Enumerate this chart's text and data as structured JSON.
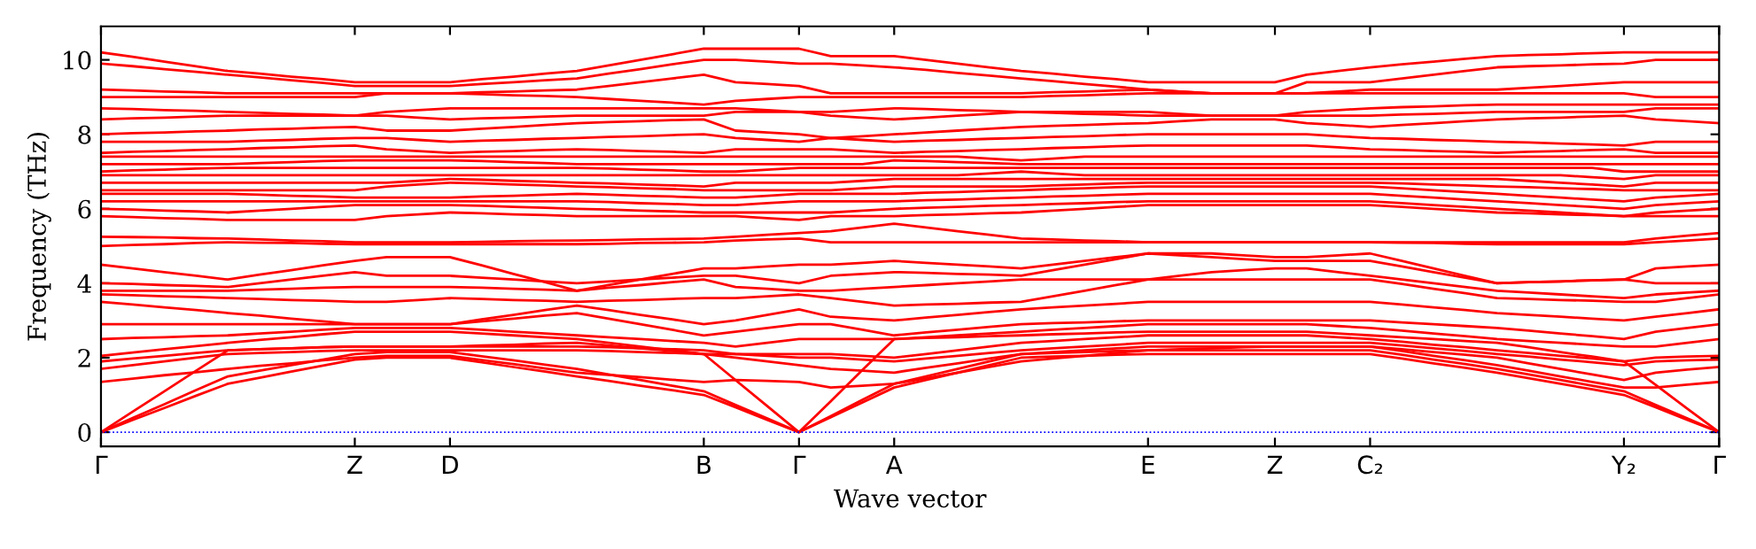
{
  "chart_data": {
    "type": "line",
    "xlabel": "Wave vector",
    "ylabel": "Frequency (THz)",
    "categories": [
      "Γ",
      null,
      null,
      null,
      null,
      null,
      null,
      null,
      "Z",
      null,
      null,
      "D",
      null,
      null,
      null,
      null,
      null,
      null,
      null,
      "B",
      null,
      null,
      "Γ",
      null,
      null,
      "A",
      null,
      null,
      null,
      null,
      null,
      null,
      null,
      "E",
      null,
      null,
      null,
      "Z",
      null,
      null,
      "C₂",
      null,
      null,
      null,
      null,
      null,
      null,
      null,
      "Y₂",
      null,
      null,
      "Γ"
    ],
    "ylim": [
      -0.38,
      10.9
    ],
    "yticks": [
      0,
      2,
      4,
      6,
      8,
      10
    ],
    "grid": false,
    "line_style": "solid",
    "marker": "none",
    "ref_lines": [
      {
        "axis": "y",
        "value": 0,
        "color": "#0000ff",
        "line_style": "dotted"
      }
    ],
    "series": [
      {
        "color": "#ff0000",
        "values": [
          0,
          0.33,
          0.65,
          0.98,
          1.3,
          1.46,
          1.63,
          1.79,
          1.95,
          2.0,
          2.0,
          2.0,
          1.88,
          1.75,
          1.63,
          1.5,
          1.38,
          1.25,
          1.13,
          1.0,
          0.67,
          0.33,
          0,
          0.4,
          0.8,
          1.2,
          1.4,
          1.6,
          1.8,
          2.0,
          2.03,
          2.05,
          2.08,
          2.1,
          2.1,
          2.1,
          2.1,
          2.1,
          2.1,
          2.1,
          2.1,
          1.98,
          1.85,
          1.73,
          1.6,
          1.45,
          1.3,
          1.15,
          1.0,
          0.67,
          0.33,
          0
        ]
      },
      {
        "color": "#ff0000",
        "values": [
          0,
          0.38,
          0.75,
          1.13,
          1.5,
          1.65,
          1.8,
          1.95,
          2.1,
          2.15,
          2.15,
          2.15,
          2.04,
          1.93,
          1.81,
          1.7,
          1.55,
          1.4,
          1.25,
          1.1,
          0.73,
          0.37,
          0,
          0.43,
          0.87,
          1.3,
          1.5,
          1.7,
          1.9,
          2.1,
          2.13,
          2.15,
          2.18,
          2.2,
          2.2,
          2.2,
          2.2,
          2.2,
          2.2,
          2.2,
          2.2,
          2.08,
          1.95,
          1.83,
          1.7,
          1.55,
          1.4,
          1.25,
          1.1,
          0.73,
          0.37,
          0
        ]
      },
      {
        "color": "#ff0000",
        "values": [
          0,
          0.55,
          1.1,
          1.65,
          2.2,
          2.23,
          2.25,
          2.28,
          2.3,
          2.3,
          2.3,
          2.3,
          2.33,
          2.35,
          2.38,
          2.4,
          2.33,
          2.25,
          2.18,
          2.1,
          1.4,
          0.7,
          0,
          0.83,
          1.67,
          2.5,
          2.53,
          2.55,
          2.58,
          2.6,
          2.63,
          2.65,
          2.68,
          2.7,
          2.7,
          2.7,
          2.7,
          2.7,
          2.7,
          2.65,
          2.6,
          2.55,
          2.5,
          2.45,
          2.4,
          2.28,
          2.15,
          2.03,
          1.9,
          1.27,
          0.63,
          0
        ]
      },
      {
        "color": "#ff0000",
        "values": [
          1.35,
          1.44,
          1.53,
          1.61,
          1.7,
          1.78,
          1.85,
          1.93,
          2.0,
          2.05,
          2.05,
          2.05,
          1.94,
          1.83,
          1.71,
          1.6,
          1.54,
          1.48,
          1.41,
          1.35,
          1.4,
          1.38,
          1.35,
          1.2,
          1.25,
          1.3,
          1.45,
          1.6,
          1.75,
          1.9,
          1.98,
          2.05,
          2.13,
          2.2,
          2.23,
          2.25,
          2.28,
          2.3,
          2.3,
          2.3,
          2.3,
          2.18,
          2.05,
          1.93,
          1.8,
          1.65,
          1.5,
          1.35,
          1.2,
          1.2,
          1.28,
          1.35
        ]
      },
      {
        "color": "#ff0000",
        "values": [
          1.7,
          1.8,
          1.9,
          2.0,
          2.1,
          2.13,
          2.15,
          2.18,
          2.2,
          2.2,
          2.2,
          2.2,
          2.2,
          2.2,
          2.2,
          2.2,
          2.18,
          2.15,
          2.13,
          2.1,
          2.0,
          1.9,
          1.8,
          1.7,
          1.65,
          1.6,
          1.73,
          1.85,
          1.98,
          2.1,
          2.15,
          2.2,
          2.25,
          2.3,
          2.3,
          2.3,
          2.3,
          2.3,
          2.3,
          2.3,
          2.3,
          2.23,
          2.15,
          2.08,
          2.0,
          1.85,
          1.7,
          1.55,
          1.4,
          1.6,
          1.68,
          1.75
        ]
      },
      {
        "color": "#ff0000",
        "values": [
          1.9,
          1.98,
          2.05,
          2.13,
          2.2,
          2.23,
          2.25,
          2.28,
          2.3,
          2.3,
          2.3,
          2.3,
          2.3,
          2.3,
          2.3,
          2.3,
          2.28,
          2.25,
          2.23,
          2.2,
          2.1,
          2.05,
          2.0,
          2.0,
          1.95,
          1.9,
          1.98,
          2.05,
          2.13,
          2.2,
          2.25,
          2.3,
          2.35,
          2.4,
          2.4,
          2.4,
          2.4,
          2.4,
          2.4,
          2.4,
          2.4,
          2.33,
          2.25,
          2.18,
          2.1,
          2.03,
          1.95,
          1.88,
          1.8,
          1.9,
          1.93,
          1.95
        ]
      },
      {
        "color": "#ff0000",
        "values": [
          2.05,
          2.14,
          2.23,
          2.31,
          2.4,
          2.48,
          2.55,
          2.63,
          2.7,
          2.7,
          2.7,
          2.7,
          2.65,
          2.6,
          2.55,
          2.5,
          2.4,
          2.3,
          2.2,
          2.1,
          2.1,
          2.1,
          2.1,
          2.1,
          2.05,
          2.0,
          2.1,
          2.2,
          2.3,
          2.4,
          2.45,
          2.5,
          2.55,
          2.6,
          2.6,
          2.6,
          2.6,
          2.6,
          2.6,
          2.55,
          2.5,
          2.43,
          2.35,
          2.28,
          2.2,
          2.13,
          2.05,
          1.98,
          1.9,
          2.0,
          2.03,
          2.05
        ]
      },
      {
        "color": "#ff0000",
        "values": [
          2.5,
          2.53,
          2.55,
          2.58,
          2.6,
          2.65,
          2.7,
          2.75,
          2.8,
          2.8,
          2.8,
          2.8,
          2.75,
          2.7,
          2.65,
          2.6,
          2.55,
          2.5,
          2.45,
          2.4,
          2.3,
          2.4,
          2.5,
          2.5,
          2.5,
          2.5,
          2.55,
          2.6,
          2.65,
          2.7,
          2.75,
          2.8,
          2.85,
          2.9,
          2.9,
          2.9,
          2.9,
          2.9,
          2.9,
          2.85,
          2.8,
          2.73,
          2.65,
          2.58,
          2.5,
          2.45,
          2.4,
          2.35,
          2.3,
          2.3,
          2.4,
          2.5
        ]
      },
      {
        "color": "#ff0000",
        "values": [
          2.9,
          2.9,
          2.9,
          2.9,
          2.9,
          2.9,
          2.9,
          2.9,
          2.9,
          2.9,
          2.9,
          2.9,
          2.98,
          3.05,
          3.13,
          3.2,
          3.05,
          2.9,
          2.75,
          2.6,
          2.7,
          2.8,
          2.9,
          2.9,
          2.75,
          2.6,
          2.68,
          2.75,
          2.83,
          2.9,
          2.93,
          2.95,
          2.98,
          3.0,
          3.0,
          3.0,
          3.0,
          3.0,
          3.0,
          3.0,
          3.0,
          2.95,
          2.9,
          2.85,
          2.8,
          2.73,
          2.65,
          2.58,
          2.5,
          2.7,
          2.8,
          2.9
        ]
      },
      {
        "color": "#ff0000",
        "values": [
          3.5,
          3.43,
          3.35,
          3.28,
          3.2,
          3.13,
          3.05,
          2.98,
          2.9,
          2.9,
          2.9,
          2.9,
          3.03,
          3.15,
          3.28,
          3.4,
          3.28,
          3.15,
          3.03,
          2.9,
          3.0,
          3.15,
          3.3,
          3.1,
          3.05,
          3.0,
          3.08,
          3.15,
          3.23,
          3.3,
          3.35,
          3.4,
          3.45,
          3.5,
          3.5,
          3.5,
          3.5,
          3.5,
          3.5,
          3.5,
          3.5,
          3.43,
          3.35,
          3.28,
          3.2,
          3.15,
          3.1,
          3.05,
          3.0,
          3.1,
          3.2,
          3.3
        ]
      },
      {
        "color": "#ff0000",
        "values": [
          3.7,
          3.68,
          3.65,
          3.63,
          3.6,
          3.58,
          3.55,
          3.53,
          3.5,
          3.5,
          3.55,
          3.6,
          3.58,
          3.55,
          3.53,
          3.5,
          3.53,
          3.55,
          3.58,
          3.6,
          3.6,
          3.65,
          3.7,
          3.6,
          3.5,
          3.4,
          3.43,
          3.45,
          3.48,
          3.5,
          3.65,
          3.8,
          3.95,
          4.1,
          4.1,
          4.1,
          4.1,
          4.1,
          4.1,
          4.1,
          4.1,
          3.98,
          3.85,
          3.73,
          3.6,
          3.58,
          3.55,
          3.53,
          3.5,
          3.5,
          3.6,
          3.7
        ]
      },
      {
        "color": "#ff0000",
        "values": [
          3.8,
          3.8,
          3.8,
          3.8,
          3.8,
          3.83,
          3.85,
          3.88,
          3.9,
          3.9,
          3.9,
          3.9,
          3.88,
          3.85,
          3.83,
          3.8,
          3.88,
          3.95,
          4.03,
          4.1,
          3.9,
          3.85,
          3.8,
          3.8,
          3.85,
          3.9,
          3.95,
          4.0,
          4.05,
          4.1,
          4.1,
          4.1,
          4.1,
          4.1,
          4.2,
          4.3,
          4.35,
          4.4,
          4.4,
          4.3,
          4.2,
          4.1,
          4.0,
          3.9,
          3.8,
          3.75,
          3.7,
          3.65,
          3.6,
          3.7,
          3.75,
          3.8
        ]
      },
      {
        "color": "#ff0000",
        "values": [
          4.0,
          3.98,
          3.95,
          3.93,
          3.9,
          4.0,
          4.1,
          4.2,
          4.3,
          4.2,
          4.2,
          4.2,
          4.15,
          4.1,
          4.05,
          4.0,
          4.05,
          4.1,
          4.15,
          4.2,
          4.2,
          4.1,
          4.0,
          4.2,
          4.25,
          4.3,
          4.28,
          4.25,
          4.23,
          4.2,
          4.35,
          4.5,
          4.65,
          4.8,
          4.8,
          4.8,
          4.75,
          4.7,
          4.7,
          4.75,
          4.8,
          4.6,
          4.4,
          4.2,
          4.0,
          4.03,
          4.05,
          4.08,
          4.1,
          4.0,
          4.0,
          4.0
        ]
      },
      {
        "color": "#ff0000",
        "values": [
          4.5,
          4.4,
          4.3,
          4.2,
          4.1,
          4.23,
          4.35,
          4.48,
          4.6,
          4.7,
          4.7,
          4.7,
          4.48,
          4.25,
          4.03,
          3.8,
          3.95,
          4.1,
          4.25,
          4.4,
          4.4,
          4.45,
          4.5,
          4.5,
          4.55,
          4.6,
          4.55,
          4.5,
          4.45,
          4.4,
          4.5,
          4.6,
          4.7,
          4.8,
          4.75,
          4.7,
          4.65,
          4.6,
          4.6,
          4.6,
          4.6,
          4.45,
          4.3,
          4.15,
          4.0,
          4.03,
          4.05,
          4.08,
          4.1,
          4.4,
          4.45,
          4.5
        ]
      },
      {
        "color": "#ff0000",
        "values": [
          5.0,
          5.03,
          5.05,
          5.08,
          5.1,
          5.09,
          5.08,
          5.06,
          5.05,
          5.05,
          5.05,
          5.05,
          5.05,
          5.05,
          5.05,
          5.05,
          5.06,
          5.08,
          5.09,
          5.1,
          5.15,
          5.18,
          5.2,
          5.1,
          5.1,
          5.1,
          5.1,
          5.1,
          5.1,
          5.1,
          5.1,
          5.1,
          5.1,
          5.1,
          5.1,
          5.1,
          5.1,
          5.1,
          5.1,
          5.1,
          5.1,
          5.09,
          5.08,
          5.06,
          5.05,
          5.05,
          5.05,
          5.05,
          5.05,
          5.1,
          5.15,
          5.2
        ]
      },
      {
        "color": "#ff0000",
        "values": [
          5.25,
          5.24,
          5.23,
          5.21,
          5.2,
          5.18,
          5.15,
          5.13,
          5.1,
          5.1,
          5.1,
          5.1,
          5.11,
          5.13,
          5.14,
          5.15,
          5.16,
          5.18,
          5.19,
          5.2,
          5.25,
          5.3,
          5.35,
          5.4,
          5.5,
          5.6,
          5.5,
          5.4,
          5.3,
          5.2,
          5.18,
          5.15,
          5.13,
          5.1,
          5.1,
          5.1,
          5.1,
          5.1,
          5.1,
          5.1,
          5.1,
          5.1,
          5.1,
          5.1,
          5.1,
          5.1,
          5.1,
          5.1,
          5.1,
          5.2,
          5.28,
          5.35
        ]
      },
      {
        "color": "#ff0000",
        "values": [
          5.8,
          5.78,
          5.75,
          5.73,
          5.7,
          5.7,
          5.7,
          5.7,
          5.7,
          5.8,
          5.85,
          5.9,
          5.88,
          5.85,
          5.83,
          5.8,
          5.8,
          5.8,
          5.8,
          5.8,
          5.8,
          5.75,
          5.7,
          5.8,
          5.8,
          5.8,
          5.83,
          5.85,
          5.88,
          5.9,
          5.95,
          6.0,
          6.05,
          6.1,
          6.1,
          6.1,
          6.1,
          6.1,
          6.1,
          6.1,
          6.1,
          6.05,
          6.0,
          5.95,
          5.9,
          5.88,
          5.85,
          5.83,
          5.8,
          5.8,
          5.8,
          5.8
        ]
      },
      {
        "color": "#ff0000",
        "values": [
          6.0,
          5.98,
          5.95,
          5.93,
          5.9,
          5.95,
          6.0,
          6.05,
          6.1,
          6.1,
          6.1,
          6.1,
          6.08,
          6.05,
          6.03,
          6.0,
          5.98,
          5.95,
          5.93,
          5.9,
          5.9,
          5.9,
          5.9,
          5.9,
          5.95,
          6.0,
          6.03,
          6.05,
          6.08,
          6.1,
          6.13,
          6.15,
          6.18,
          6.2,
          6.2,
          6.2,
          6.2,
          6.2,
          6.2,
          6.2,
          6.2,
          6.15,
          6.1,
          6.05,
          6.0,
          5.95,
          5.9,
          5.85,
          5.8,
          5.9,
          5.95,
          6.0
        ]
      },
      {
        "color": "#ff0000",
        "values": [
          6.2,
          6.2,
          6.2,
          6.2,
          6.2,
          6.2,
          6.2,
          6.2,
          6.2,
          6.2,
          6.2,
          6.2,
          6.2,
          6.2,
          6.2,
          6.2,
          6.18,
          6.15,
          6.13,
          6.1,
          6.1,
          6.15,
          6.2,
          6.2,
          6.2,
          6.2,
          6.23,
          6.25,
          6.28,
          6.3,
          6.33,
          6.35,
          6.38,
          6.4,
          6.4,
          6.4,
          6.4,
          6.4,
          6.4,
          6.4,
          6.4,
          6.35,
          6.3,
          6.25,
          6.2,
          6.15,
          6.1,
          6.05,
          6.0,
          6.1,
          6.15,
          6.2
        ]
      },
      {
        "color": "#ff0000",
        "values": [
          6.4,
          6.4,
          6.4,
          6.4,
          6.4,
          6.38,
          6.35,
          6.33,
          6.3,
          6.3,
          6.3,
          6.3,
          6.33,
          6.35,
          6.38,
          6.4,
          6.38,
          6.35,
          6.33,
          6.3,
          6.3,
          6.35,
          6.4,
          6.4,
          6.4,
          6.4,
          6.43,
          6.45,
          6.48,
          6.5,
          6.53,
          6.55,
          6.58,
          6.6,
          6.6,
          6.6,
          6.6,
          6.6,
          6.6,
          6.6,
          6.6,
          6.55,
          6.5,
          6.45,
          6.4,
          6.35,
          6.3,
          6.25,
          6.2,
          6.3,
          6.35,
          6.4
        ]
      },
      {
        "color": "#ff0000",
        "values": [
          6.5,
          6.5,
          6.5,
          6.5,
          6.5,
          6.5,
          6.5,
          6.5,
          6.5,
          6.6,
          6.65,
          6.7,
          6.68,
          6.65,
          6.63,
          6.6,
          6.58,
          6.55,
          6.53,
          6.5,
          6.5,
          6.5,
          6.5,
          6.5,
          6.55,
          6.6,
          6.6,
          6.6,
          6.6,
          6.6,
          6.63,
          6.65,
          6.68,
          6.7,
          6.7,
          6.7,
          6.7,
          6.7,
          6.7,
          6.7,
          6.7,
          6.68,
          6.65,
          6.63,
          6.6,
          6.58,
          6.55,
          6.53,
          6.5,
          6.5,
          6.5,
          6.5
        ]
      },
      {
        "color": "#ff0000",
        "values": [
          6.7,
          6.7,
          6.7,
          6.7,
          6.7,
          6.7,
          6.7,
          6.7,
          6.7,
          6.7,
          6.75,
          6.8,
          6.78,
          6.75,
          6.73,
          6.7,
          6.68,
          6.65,
          6.63,
          6.6,
          6.7,
          6.7,
          6.7,
          6.7,
          6.75,
          6.8,
          6.8,
          6.8,
          6.8,
          6.8,
          6.8,
          6.8,
          6.8,
          6.8,
          6.8,
          6.8,
          6.8,
          6.8,
          6.8,
          6.8,
          6.8,
          6.8,
          6.8,
          6.8,
          6.8,
          6.75,
          6.7,
          6.65,
          6.6,
          6.7,
          6.7,
          6.7
        ]
      },
      {
        "color": "#ff0000",
        "values": [
          6.9,
          6.9,
          6.9,
          6.9,
          6.9,
          6.9,
          6.9,
          6.9,
          6.9,
          6.9,
          6.9,
          6.9,
          6.9,
          6.9,
          6.9,
          6.9,
          6.9,
          6.9,
          6.9,
          6.9,
          6.9,
          6.9,
          6.9,
          6.9,
          6.9,
          6.9,
          6.9,
          6.9,
          6.95,
          7.0,
          6.95,
          6.9,
          6.9,
          6.9,
          6.9,
          6.9,
          6.9,
          6.9,
          6.9,
          6.9,
          6.9,
          6.9,
          6.9,
          6.9,
          6.9,
          6.9,
          6.9,
          6.85,
          6.8,
          6.9,
          6.9,
          6.9
        ]
      },
      {
        "color": "#ff0000",
        "values": [
          7.0,
          7.03,
          7.05,
          7.08,
          7.1,
          7.1,
          7.1,
          7.1,
          7.1,
          7.1,
          7.1,
          7.1,
          7.1,
          7.1,
          7.1,
          7.1,
          7.08,
          7.05,
          7.03,
          7.0,
          7.0,
          7.05,
          7.1,
          7.1,
          7.1,
          7.1,
          7.1,
          7.1,
          7.1,
          7.1,
          7.1,
          7.1,
          7.1,
          7.1,
          7.1,
          7.1,
          7.1,
          7.1,
          7.1,
          7.1,
          7.1,
          7.1,
          7.1,
          7.1,
          7.1,
          7.1,
          7.1,
          7.1,
          7.0,
          7.0,
          7.0,
          7.0
        ]
      },
      {
        "color": "#ff0000",
        "values": [
          7.2,
          7.2,
          7.2,
          7.2,
          7.2,
          7.23,
          7.25,
          7.28,
          7.3,
          7.3,
          7.3,
          7.3,
          7.28,
          7.25,
          7.23,
          7.2,
          7.2,
          7.2,
          7.2,
          7.2,
          7.2,
          7.2,
          7.2,
          7.2,
          7.2,
          7.3,
          7.28,
          7.25,
          7.23,
          7.2,
          7.2,
          7.2,
          7.2,
          7.2,
          7.2,
          7.2,
          7.2,
          7.2,
          7.2,
          7.2,
          7.2,
          7.2,
          7.2,
          7.2,
          7.2,
          7.2,
          7.2,
          7.2,
          7.2,
          7.2,
          7.2,
          7.2
        ]
      },
      {
        "color": "#ff0000",
        "values": [
          7.4,
          7.4,
          7.4,
          7.4,
          7.4,
          7.4,
          7.4,
          7.4,
          7.4,
          7.4,
          7.4,
          7.4,
          7.4,
          7.4,
          7.4,
          7.4,
          7.4,
          7.4,
          7.4,
          7.4,
          7.4,
          7.4,
          7.4,
          7.4,
          7.4,
          7.4,
          7.4,
          7.4,
          7.35,
          7.3,
          7.35,
          7.4,
          7.4,
          7.4,
          7.4,
          7.4,
          7.4,
          7.4,
          7.4,
          7.4,
          7.4,
          7.4,
          7.4,
          7.4,
          7.4,
          7.4,
          7.4,
          7.4,
          7.4,
          7.4,
          7.4,
          7.4
        ]
      },
      {
        "color": "#ff0000",
        "values": [
          7.5,
          7.53,
          7.55,
          7.58,
          7.6,
          7.63,
          7.65,
          7.68,
          7.7,
          7.6,
          7.55,
          7.5,
          7.53,
          7.55,
          7.58,
          7.6,
          7.58,
          7.55,
          7.53,
          7.5,
          7.6,
          7.6,
          7.6,
          7.6,
          7.55,
          7.5,
          7.53,
          7.55,
          7.58,
          7.6,
          7.63,
          7.65,
          7.68,
          7.7,
          7.7,
          7.7,
          7.7,
          7.7,
          7.7,
          7.65,
          7.6,
          7.58,
          7.55,
          7.53,
          7.5,
          7.53,
          7.55,
          7.58,
          7.6,
          7.5,
          7.5,
          7.5
        ]
      },
      {
        "color": "#ff0000",
        "values": [
          7.8,
          7.8,
          7.8,
          7.8,
          7.8,
          7.83,
          7.85,
          7.88,
          7.9,
          7.9,
          7.85,
          7.8,
          7.83,
          7.85,
          7.88,
          7.9,
          7.93,
          7.95,
          7.98,
          8.0,
          7.9,
          7.85,
          7.8,
          7.9,
          7.85,
          7.8,
          7.83,
          7.85,
          7.88,
          7.9,
          7.93,
          7.95,
          7.98,
          8.0,
          8.0,
          8.0,
          8.0,
          8.0,
          8.0,
          7.95,
          7.9,
          7.88,
          7.85,
          7.83,
          7.8,
          7.78,
          7.75,
          7.73,
          7.7,
          7.8,
          7.8,
          7.8
        ]
      },
      {
        "color": "#ff0000",
        "values": [
          8.0,
          8.03,
          8.05,
          8.08,
          8.1,
          8.13,
          8.15,
          8.18,
          8.2,
          8.1,
          8.1,
          8.1,
          8.15,
          8.2,
          8.25,
          8.3,
          8.33,
          8.35,
          8.38,
          8.4,
          8.1,
          8.05,
          8.0,
          7.9,
          7.95,
          8.0,
          8.05,
          8.1,
          8.15,
          8.2,
          8.23,
          8.25,
          8.28,
          8.3,
          8.35,
          8.4,
          8.4,
          8.4,
          8.3,
          8.25,
          8.2,
          8.25,
          8.3,
          8.35,
          8.4,
          8.43,
          8.45,
          8.48,
          8.5,
          8.4,
          8.35,
          8.3
        ]
      },
      {
        "color": "#ff0000",
        "values": [
          8.4,
          8.43,
          8.45,
          8.48,
          8.5,
          8.5,
          8.5,
          8.5,
          8.5,
          8.5,
          8.45,
          8.4,
          8.43,
          8.45,
          8.48,
          8.5,
          8.5,
          8.5,
          8.5,
          8.5,
          8.6,
          8.6,
          8.6,
          8.5,
          8.45,
          8.4,
          8.45,
          8.5,
          8.55,
          8.6,
          8.6,
          8.6,
          8.6,
          8.6,
          8.55,
          8.5,
          8.5,
          8.5,
          8.5,
          8.5,
          8.5,
          8.53,
          8.55,
          8.58,
          8.6,
          8.6,
          8.6,
          8.6,
          8.6,
          8.7,
          8.7,
          8.7
        ]
      },
      {
        "color": "#ff0000",
        "values": [
          8.7,
          8.68,
          8.65,
          8.63,
          8.6,
          8.58,
          8.55,
          8.53,
          8.5,
          8.6,
          8.65,
          8.7,
          8.7,
          8.7,
          8.7,
          8.7,
          8.7,
          8.7,
          8.7,
          8.7,
          8.7,
          8.65,
          8.6,
          8.6,
          8.65,
          8.7,
          8.68,
          8.65,
          8.63,
          8.6,
          8.58,
          8.55,
          8.53,
          8.5,
          8.5,
          8.5,
          8.5,
          8.5,
          8.6,
          8.65,
          8.7,
          8.73,
          8.75,
          8.78,
          8.8,
          8.8,
          8.8,
          8.8,
          8.8,
          8.8,
          8.8,
          8.8
        ]
      },
      {
        "color": "#ff0000",
        "values": [
          9.0,
          9.0,
          9.0,
          9.0,
          9.0,
          9.0,
          9.0,
          9.0,
          9.0,
          9.1,
          9.1,
          9.1,
          9.08,
          9.05,
          9.03,
          9.0,
          8.95,
          8.9,
          8.85,
          8.8,
          8.9,
          8.95,
          9.0,
          9.0,
          9.0,
          9.0,
          9.0,
          9.0,
          9.0,
          9.0,
          9.03,
          9.05,
          9.08,
          9.1,
          9.1,
          9.1,
          9.1,
          9.1,
          9.1,
          9.1,
          9.1,
          9.1,
          9.1,
          9.1,
          9.1,
          9.1,
          9.1,
          9.1,
          9.1,
          9.0,
          9.0,
          9.0
        ]
      },
      {
        "color": "#ff0000",
        "values": [
          9.2,
          9.18,
          9.15,
          9.13,
          9.1,
          9.1,
          9.1,
          9.1,
          9.1,
          9.1,
          9.1,
          9.1,
          9.13,
          9.15,
          9.18,
          9.2,
          9.3,
          9.4,
          9.5,
          9.6,
          9.4,
          9.35,
          9.3,
          9.1,
          9.1,
          9.1,
          9.1,
          9.1,
          9.1,
          9.1,
          9.13,
          9.15,
          9.18,
          9.2,
          9.15,
          9.1,
          9.1,
          9.1,
          9.1,
          9.15,
          9.2,
          9.2,
          9.2,
          9.2,
          9.2,
          9.25,
          9.3,
          9.35,
          9.4,
          9.4,
          9.4,
          9.4
        ]
      },
      {
        "color": "#ff0000",
        "values": [
          9.9,
          9.83,
          9.75,
          9.68,
          9.6,
          9.53,
          9.45,
          9.38,
          9.3,
          9.3,
          9.3,
          9.3,
          9.35,
          9.4,
          9.45,
          9.5,
          9.63,
          9.75,
          9.88,
          10.0,
          10.0,
          9.95,
          9.9,
          9.9,
          9.85,
          9.8,
          9.73,
          9.65,
          9.58,
          9.5,
          9.43,
          9.35,
          9.28,
          9.2,
          9.15,
          9.1,
          9.1,
          9.1,
          9.4,
          9.4,
          9.4,
          9.5,
          9.6,
          9.7,
          9.8,
          9.83,
          9.85,
          9.88,
          9.9,
          10.0,
          10.0,
          10.0
        ]
      },
      {
        "color": "#ff0000",
        "values": [
          10.2,
          10.08,
          9.95,
          9.83,
          9.7,
          9.63,
          9.55,
          9.48,
          9.4,
          9.4,
          9.4,
          9.4,
          9.48,
          9.55,
          9.63,
          9.7,
          9.85,
          10.0,
          10.15,
          10.3,
          10.3,
          10.3,
          10.3,
          10.1,
          10.1,
          10.1,
          10.0,
          9.9,
          9.8,
          9.7,
          9.63,
          9.55,
          9.48,
          9.4,
          9.4,
          9.4,
          9.4,
          9.4,
          9.6,
          9.7,
          9.8,
          9.88,
          9.95,
          10.03,
          10.1,
          10.13,
          10.15,
          10.18,
          10.2,
          10.2,
          10.2,
          10.2
        ]
      }
    ]
  }
}
